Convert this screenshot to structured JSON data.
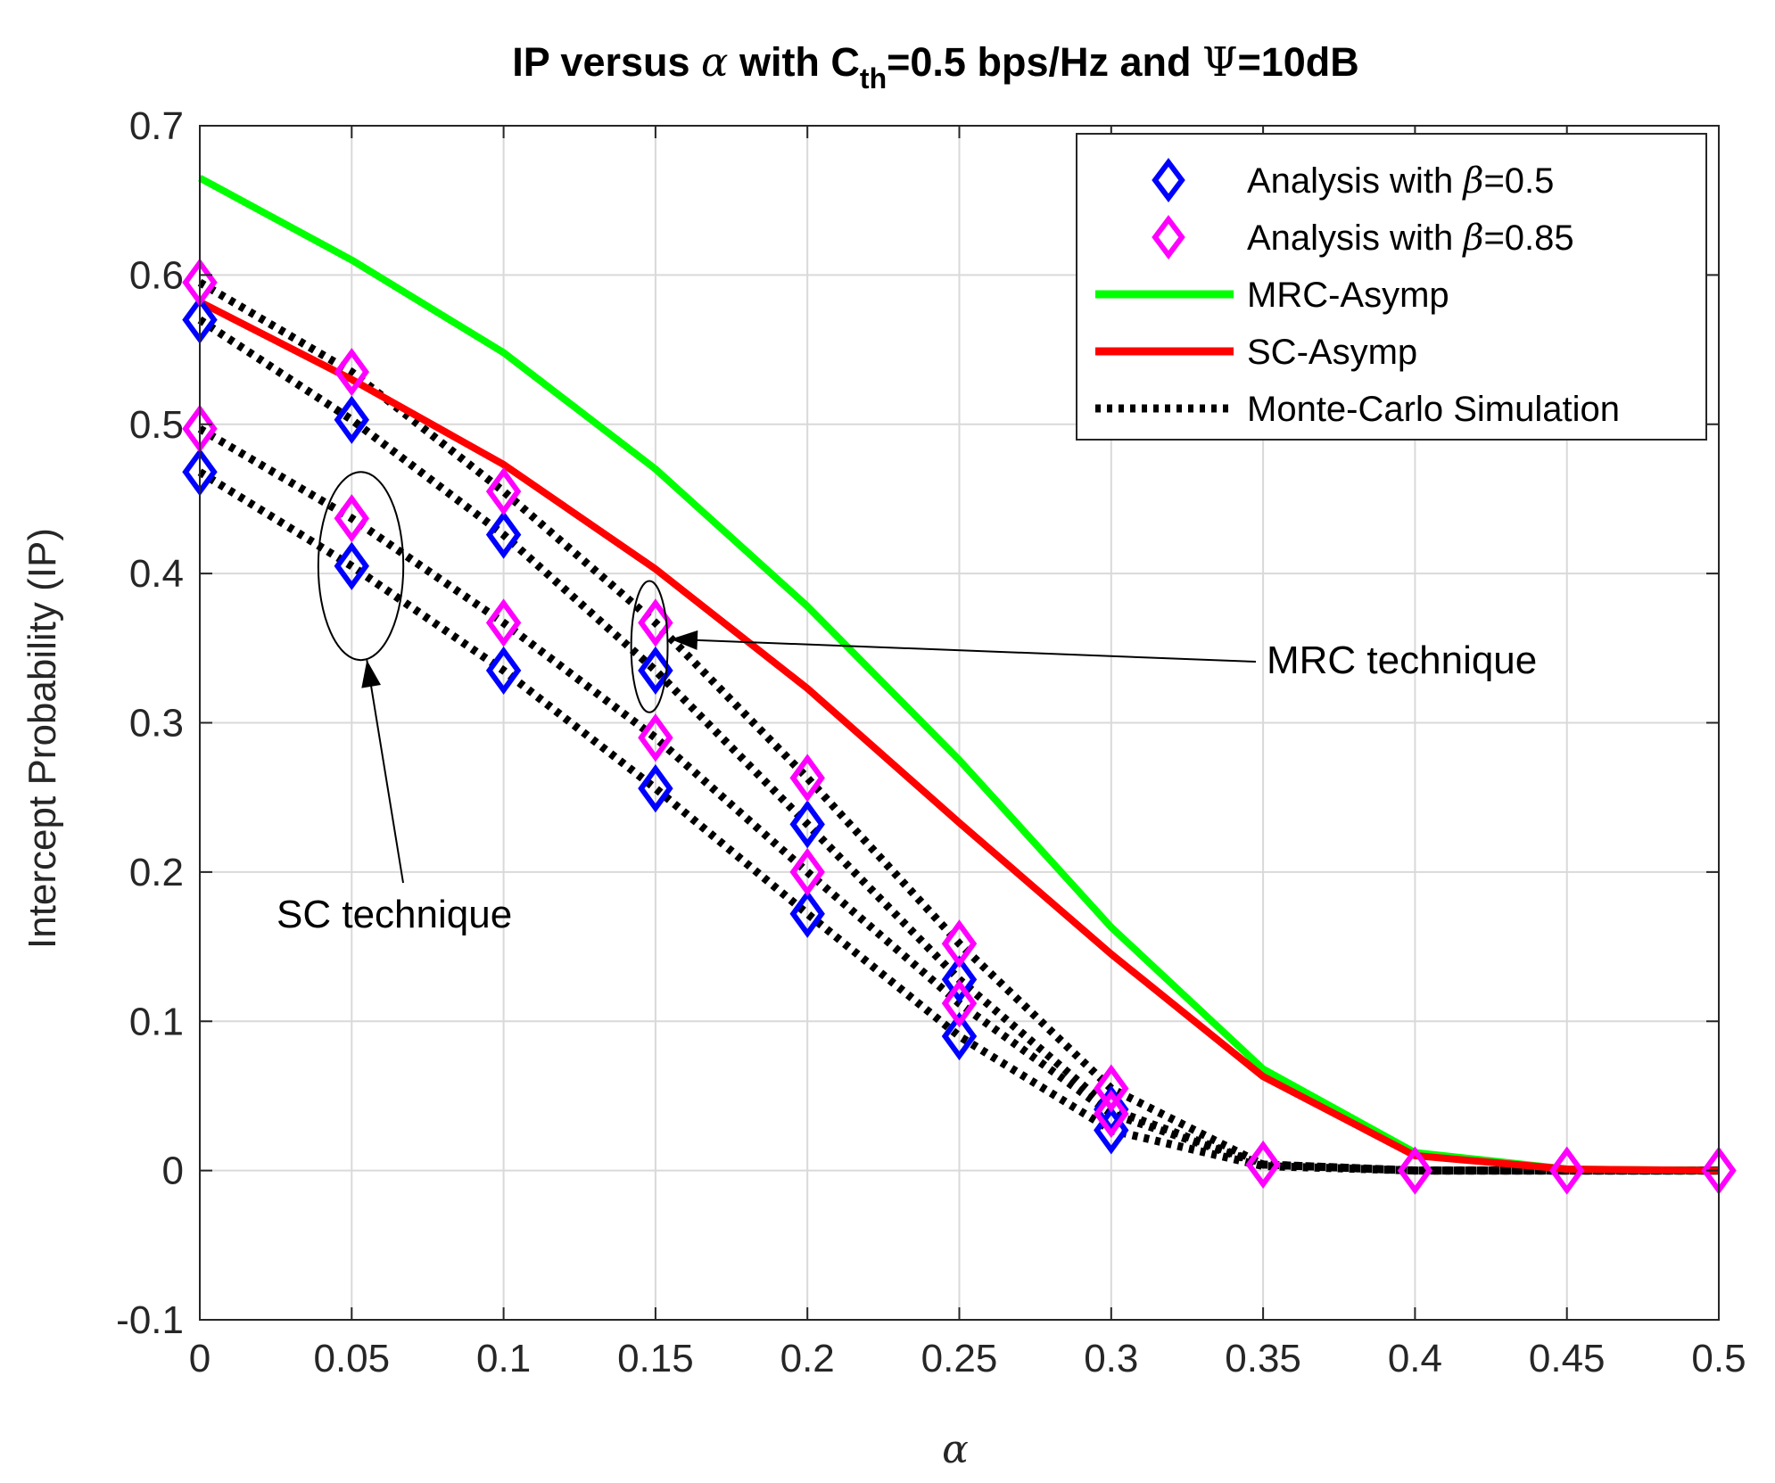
{
  "chart_data": {
    "type": "line",
    "title": {
      "prefix": "IP versus ",
      "alpha": "α",
      "mid": " with C",
      "sub": "th",
      "rest": "=0.5 bps/Hz and ",
      "psi": "Ψ",
      "suffix": "=10dB"
    },
    "xlabel": "α",
    "ylabel": "Intercept Probability (IP)",
    "xlim": [
      0,
      0.5
    ],
    "ylim": [
      -0.1,
      0.7
    ],
    "grid": true,
    "x": [
      0,
      0.05,
      0.1,
      0.15,
      0.2,
      0.25,
      0.3,
      0.35,
      0.4,
      0.45,
      0.5
    ],
    "xticks": [
      "0",
      "0.05",
      "0.1",
      "0.15",
      "0.2",
      "0.25",
      "0.3",
      "0.35",
      "0.4",
      "0.45",
      "0.5"
    ],
    "yticks": [
      "-0.1",
      "0",
      "0.1",
      "0.2",
      "0.3",
      "0.4",
      "0.5",
      "0.6",
      "0.7"
    ],
    "ytick_values": [
      -0.1,
      0,
      0.1,
      0.2,
      0.3,
      0.4,
      0.5,
      0.6,
      0.7
    ],
    "colors": {
      "analysis_beta_05": "#0000ff",
      "analysis_beta_085": "#ff00ff",
      "mrc_asymp": "#00ff00",
      "sc_asymp": "#ff0000",
      "simulation": "#000000",
      "grid": "#d9d9d9",
      "axis": "#262626"
    },
    "legend": {
      "placement": "top-right",
      "entries": [
        {
          "key": "analysis_beta_05",
          "prefix": "Analysis with ",
          "beta": "β",
          "suffix": "=0.5",
          "style": "diamond"
        },
        {
          "key": "analysis_beta_085",
          "prefix": "Analysis with ",
          "beta": "β",
          "suffix": "=0.85",
          "style": "diamond"
        },
        {
          "key": "mrc_asymp",
          "label": "MRC-Asymp",
          "style": "solid"
        },
        {
          "key": "sc_asymp",
          "label": "SC-Asymp",
          "style": "solid"
        },
        {
          "key": "simulation",
          "label": "Monte-Carlo Simulation",
          "style": "dotted"
        }
      ]
    },
    "series": [
      {
        "name": "MRC-Asymp",
        "key": "mrc_asymp",
        "style": "solid",
        "x": [
          0,
          0.05,
          0.1,
          0.15,
          0.2,
          0.25,
          0.3,
          0.35,
          0.4,
          0.45,
          0.5
        ],
        "values": [
          0.665,
          0.61,
          0.548,
          0.47,
          0.378,
          0.275,
          0.163,
          0.068,
          0.012,
          0.001,
          0.0
        ]
      },
      {
        "name": "SC-Asymp",
        "key": "sc_asymp",
        "style": "solid",
        "x": [
          0,
          0.05,
          0.1,
          0.15,
          0.2,
          0.25,
          0.3,
          0.35,
          0.4,
          0.45,
          0.5
        ],
        "values": [
          0.582,
          0.53,
          0.473,
          0.403,
          0.323,
          0.233,
          0.145,
          0.063,
          0.01,
          0.001,
          0.0
        ]
      },
      {
        "name": "MRC, β=0.85 (Monte-Carlo)",
        "key": "simulation",
        "style": "dotted",
        "x": [
          0,
          0.05,
          0.1,
          0.15,
          0.2,
          0.25,
          0.3,
          0.35,
          0.4,
          0.45,
          0.5
        ],
        "values": [
          0.595,
          0.535,
          0.455,
          0.367,
          0.263,
          0.152,
          0.055,
          0.004,
          0.0,
          0.0,
          0.0
        ]
      },
      {
        "name": "MRC, β=0.5 (Monte-Carlo)",
        "key": "simulation",
        "style": "dotted",
        "x": [
          0,
          0.05,
          0.1,
          0.15,
          0.2,
          0.25,
          0.3,
          0.35,
          0.4,
          0.45,
          0.5
        ],
        "values": [
          0.57,
          0.503,
          0.426,
          0.335,
          0.232,
          0.128,
          0.041,
          0.004,
          0.0,
          0.0,
          0.0
        ]
      },
      {
        "name": "SC, β=0.85 (Monte-Carlo)",
        "key": "simulation",
        "style": "dotted",
        "x": [
          0,
          0.05,
          0.1,
          0.15,
          0.2,
          0.25,
          0.3,
          0.35,
          0.4,
          0.45,
          0.5
        ],
        "values": [
          0.497,
          0.437,
          0.367,
          0.29,
          0.2,
          0.112,
          0.038,
          0.004,
          0.0,
          0.0,
          0.0
        ]
      },
      {
        "name": "SC, β=0.5 (Monte-Carlo)",
        "key": "simulation",
        "style": "dotted",
        "x": [
          0,
          0.05,
          0.1,
          0.15,
          0.2,
          0.25,
          0.3,
          0.35,
          0.4,
          0.45,
          0.5
        ],
        "values": [
          0.468,
          0.405,
          0.335,
          0.256,
          0.172,
          0.09,
          0.027,
          0.003,
          0.0,
          0.0,
          0.0
        ]
      }
    ],
    "markers": [
      {
        "key": "analysis_beta_05",
        "x": [
          0,
          0.05,
          0.1,
          0.15,
          0.2,
          0.25,
          0.3
        ],
        "values": [
          0.57,
          0.503,
          0.426,
          0.335,
          0.232,
          0.128,
          0.041
        ]
      },
      {
        "key": "analysis_beta_05",
        "x": [
          0,
          0.05,
          0.1,
          0.15,
          0.2,
          0.25,
          0.3
        ],
        "values": [
          0.468,
          0.405,
          0.335,
          0.256,
          0.172,
          0.09,
          0.027
        ]
      },
      {
        "key": "analysis_beta_085",
        "x": [
          0,
          0.05,
          0.1,
          0.15,
          0.2,
          0.25,
          0.3,
          0.35,
          0.4,
          0.45,
          0.5
        ],
        "values": [
          0.595,
          0.535,
          0.455,
          0.367,
          0.263,
          0.152,
          0.055,
          0.004,
          0.0,
          0.0,
          0.0
        ]
      },
      {
        "key": "analysis_beta_085",
        "x": [
          0,
          0.05,
          0.1,
          0.15,
          0.2,
          0.25,
          0.3
        ],
        "values": [
          0.497,
          0.437,
          0.367,
          0.29,
          0.2,
          0.112,
          0.038
        ]
      }
    ],
    "annotations": [
      {
        "id": "sc",
        "text": "SC technique",
        "ellipse_center": [
          0.053,
          0.405
        ],
        "ellipse_rx": 0.014,
        "ellipse_ry": 0.063,
        "arrow_tip": [
          0.055,
          0.342
        ]
      },
      {
        "id": "mrc",
        "text": "MRC technique",
        "ellipse_center": [
          0.148,
          0.351
        ],
        "ellipse_rx": 0.006,
        "ellipse_ry": 0.044,
        "arrow_tip": [
          0.155,
          0.356
        ]
      }
    ]
  }
}
